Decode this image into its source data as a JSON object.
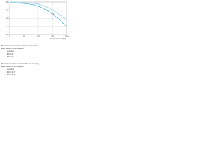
{
  "chart_data": {
    "type": "line",
    "xlabel": "Temperature (°C)",
    "x": [
      0,
      20,
      40,
      60,
      80,
      100,
      120,
      140,
      160,
      180,
      200
    ],
    "series": [
      {
        "name": "1",
        "color": "#4fb3d9",
        "values": [
          99,
          99,
          98.5,
          98,
          97,
          95,
          92,
          88,
          83,
          77,
          70
        ]
      },
      {
        "name": "2",
        "color": "#8fd3ee",
        "values": [
          100,
          100,
          99.5,
          99,
          98.5,
          97.5,
          95.5,
          92.5,
          88.5,
          83.5,
          78
        ]
      }
    ],
    "xlim": [
      0,
      200
    ],
    "ylim": [
      60,
      100
    ],
    "xticks": [
      0,
      50,
      100,
      150,
      200
    ],
    "yticks": [
      60,
      70,
      80,
      90,
      100
    ],
    "grid": true,
    "notes": [
      [
        "Reaction mixture from cyclic carbonates",
        "with solvent composition:",
        "curve 1",
        "EC = 1",
        "PC = 0"
      ],
      [
        "Reaction mixture obtained for re-working",
        "with solvent composition:",
        "curve 2",
        "EC = 0.5",
        "PC = 0.5"
      ]
    ]
  }
}
